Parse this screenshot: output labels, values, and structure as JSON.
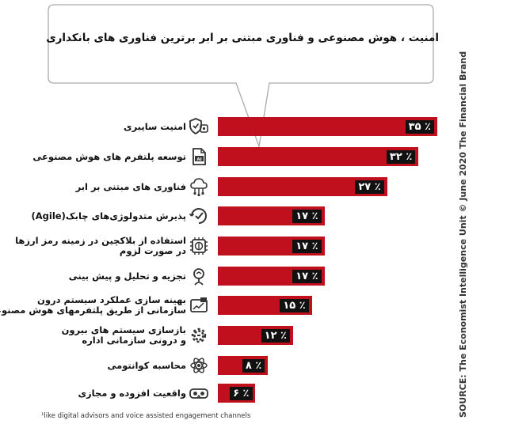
{
  "chart_data": {
    "type": "bar",
    "orientation": "horizontal",
    "title": "امنیت ، هوش مصنوعی و فناوری مبتنی بر ابر برترین فناوری های بانکداری",
    "categories": [
      [
        "امنیت سایبری"
      ],
      [
        "توسعه پلتفرم های  هوش مصنوعی"
      ],
      [
        "فناوری های مبتنی بر ابر"
      ],
      [
        "پذیرش متدولوژی‌های  چابک(Agile)"
      ],
      [
        "استفاده از بلاکچین در زمینه رمز ارزها",
        "در صورت لزوم"
      ],
      [
        "تجزیه و تحلیل و پیش بینی"
      ],
      [
        "بهینه سازی عملکرد سیستم درون",
        "سازمانی از طریق پلتفرمهای هوش مصنوعی"
      ],
      [
        "بازسازی سیستم های بیرون",
        "و درونی سازمانی   اداره"
      ],
      [
        "محاسبه کوانتومی"
      ],
      [
        "واقعیت افزوده و مجازی"
      ]
    ],
    "value_labels": [
      "٪ ۳۵",
      "٪ ۳۲",
      "٪ ۲۷",
      "٪ ۱۷",
      "٪ ۱۷",
      "٪ ۱۷",
      "٪ ۱۵",
      "٪ ۱۲",
      "٪ ۸",
      "٪ ۶"
    ],
    "values": [
      35,
      32,
      27,
      17,
      17,
      17,
      15,
      12,
      8,
      6
    ],
    "unit": "%",
    "bar_color": "#c0101d",
    "grid": false,
    "legend": "none"
  },
  "icons": [
    "shield-gear-icon",
    "ai-document-icon",
    "cloud-network-icon",
    "agile-cycle-icon",
    "blockchain-coin-icon",
    "analytics-head-icon",
    "ai-dashboard-icon",
    "gear-wrench-icon",
    "atom-icon",
    "vr-headset-icon"
  ],
  "source": "SOURCE: The Economist Intelligence Unit © June 2020 The Financial Brand",
  "footnote": "¹like digital advisors and voice assisted engagement channels"
}
